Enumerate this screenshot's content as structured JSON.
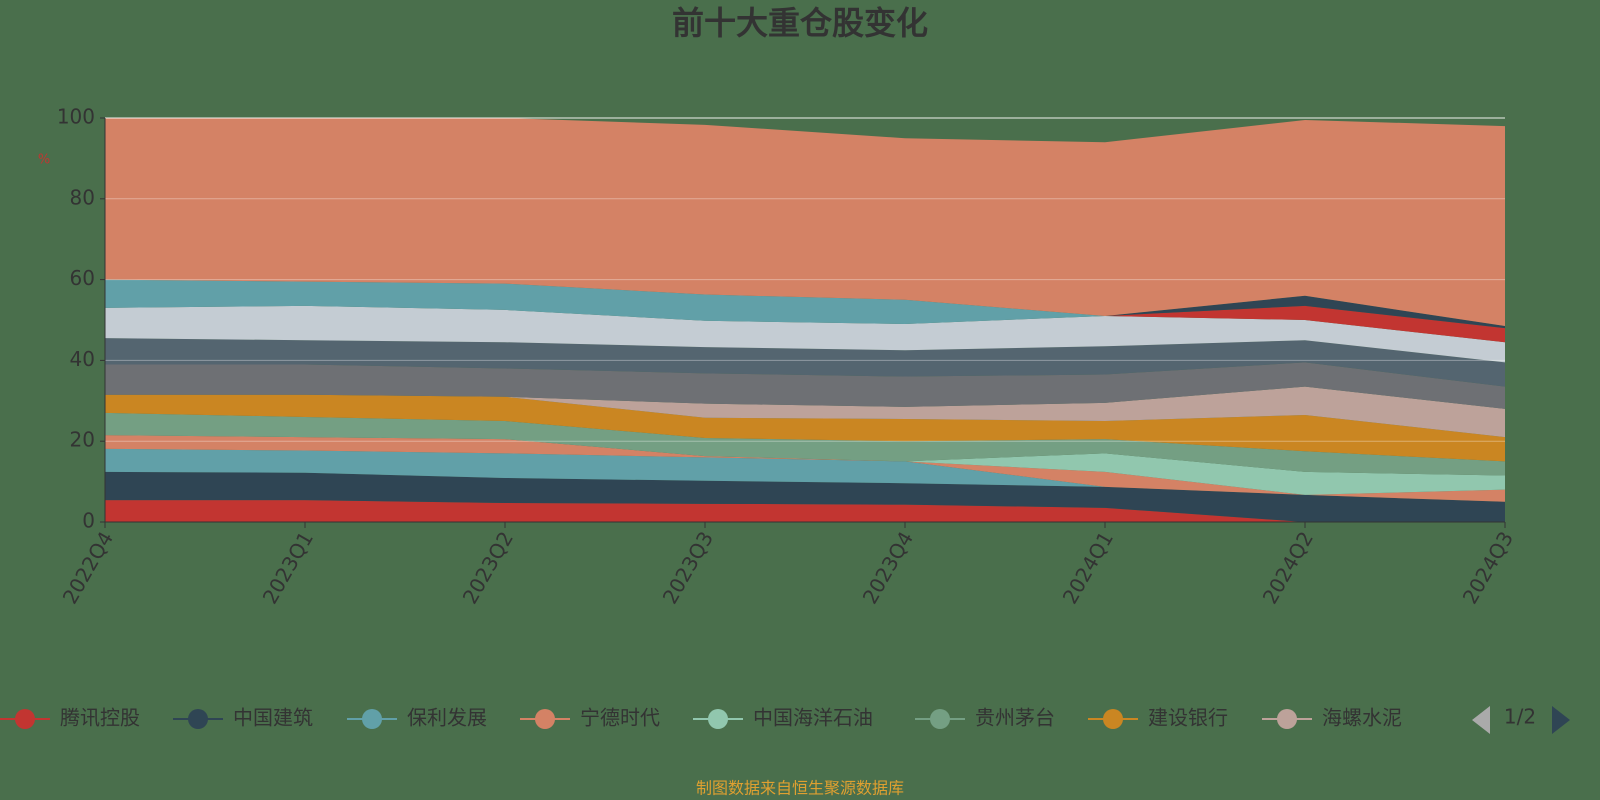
{
  "chart_data": {
    "type": "stacked_area",
    "title": "前十大重仓股变化",
    "y_unit": "%",
    "categories": [
      "2022Q4",
      "2023Q1",
      "2023Q2",
      "2023Q3",
      "2023Q4",
      "2024Q1",
      "2024Q2",
      "2024Q3"
    ],
    "ylim": [
      0,
      100
    ],
    "yticks": [
      0,
      20,
      40,
      60,
      80,
      100
    ],
    "grid": true,
    "series": [
      {
        "name": "腾讯控股",
        "color": "#c23531",
        "values": [
          5.4,
          5.4,
          4.7,
          4.5,
          4.3,
          3.5,
          0,
          0
        ]
      },
      {
        "name": "中国建筑",
        "color": "#2f4554",
        "values": [
          7.0,
          6.8,
          6.2,
          5.7,
          5.3,
          5.2,
          6.7,
          5.0
        ]
      },
      {
        "name": "保利发展",
        "color": "#61a0a8",
        "values": [
          5.7,
          5.5,
          6.1,
          5.8,
          5.4,
          0,
          0,
          0
        ]
      },
      {
        "name": "宁德时代",
        "color": "#d48265",
        "values": [
          3.4,
          3.3,
          3.5,
          0.3,
          0,
          3.7,
          0,
          3.0
        ]
      },
      {
        "name": "中国海洋石油",
        "color": "#91c7ae",
        "values": [
          0,
          0,
          0,
          0,
          0,
          4.6,
          5.7,
          3.5
        ]
      },
      {
        "name": "贵州茅台",
        "color": "#749f83",
        "values": [
          5.5,
          5.0,
          4.5,
          4.5,
          5.0,
          3.5,
          5.1,
          3.5
        ]
      },
      {
        "name": "建设银行",
        "color": "#ca8622",
        "values": [
          4.5,
          5.5,
          6.0,
          5.0,
          5.5,
          4.5,
          9.0,
          6.0
        ]
      },
      {
        "name": "海螺水泥",
        "color": "#bda29a",
        "values": [
          0,
          0,
          0,
          3.5,
          3.0,
          4.5,
          7.0,
          7.0
        ]
      },
      {
        "name": null,
        "color": "#6e7074",
        "values": [
          7.5,
          7.5,
          7.0,
          7.5,
          7.5,
          7.0,
          6.0,
          5.5
        ]
      },
      {
        "name": null,
        "color": "#546570",
        "values": [
          6.5,
          6.0,
          6.5,
          6.5,
          6.5,
          7.0,
          5.5,
          6.0
        ]
      },
      {
        "name": null,
        "color": "#c4ccd3",
        "values": [
          7.5,
          8.5,
          8.0,
          6.5,
          6.5,
          7.5,
          5.0,
          5.0
        ]
      },
      {
        "name": null,
        "color": "#c23531",
        "values": [
          0,
          0,
          0,
          0,
          0,
          0,
          3.5,
          3.5
        ]
      },
      {
        "name": null,
        "color": "#2f4554",
        "values": [
          0,
          0,
          0,
          0,
          0,
          0,
          2.5,
          0.5
        ]
      },
      {
        "name": null,
        "color": "#61a0a8",
        "values": [
          7.0,
          6.0,
          6.5,
          6.5,
          6.0,
          0,
          0,
          0
        ]
      },
      {
        "name": null,
        "color": "#d48265",
        "values": [
          40.0,
          40.5,
          41.0,
          42.0,
          40.0,
          43.0,
          43.5,
          49.5
        ]
      }
    ],
    "legend_page": "1/2",
    "footer": "制图数据来自恒生聚源数据库"
  }
}
